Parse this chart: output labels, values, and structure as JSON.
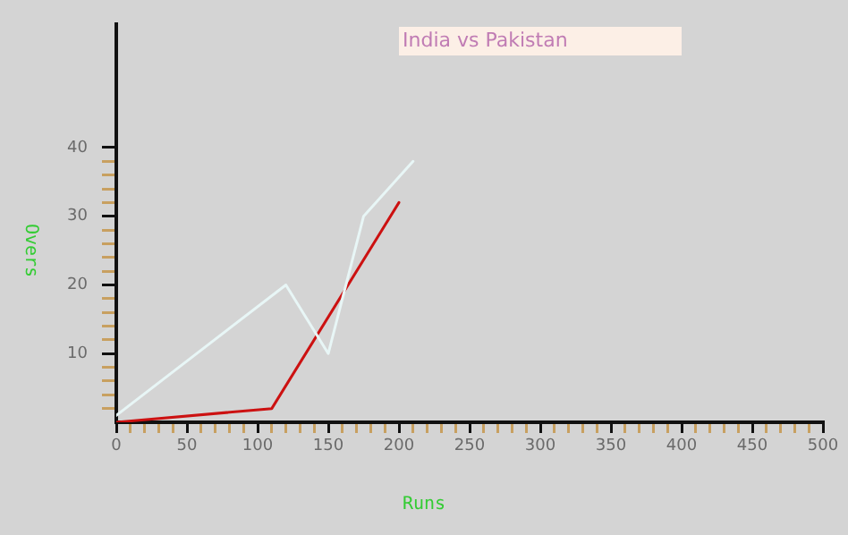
{
  "chart_data": {
    "type": "line",
    "title": "India vs Pakistan",
    "xlabel": "Runs",
    "ylabel": "Overs",
    "xlim": [
      0,
      500
    ],
    "ylim": [
      0,
      58
    ],
    "xticks": [
      0,
      {
        "value": 10,
        "label": null
      },
      {
        "value": 20,
        "label": null
      },
      {
        "value": 30,
        "label": null
      },
      {
        "value": 40,
        "label": null
      },
      50,
      {
        "value": 60,
        "label": null
      },
      {
        "value": 70,
        "label": null
      },
      {
        "value": 80,
        "label": null
      },
      {
        "value": 90,
        "label": null
      },
      100,
      {
        "value": 110,
        "label": null
      },
      {
        "value": 120,
        "label": null
      },
      {
        "value": 130,
        "label": null
      },
      {
        "value": 140,
        "label": null
      },
      150,
      {
        "value": 160,
        "label": null
      },
      {
        "value": 170,
        "label": null
      },
      {
        "value": 180,
        "label": null
      },
      {
        "value": 190,
        "label": null
      },
      200,
      {
        "value": 210,
        "label": null
      },
      {
        "value": 220,
        "label": null
      },
      {
        "value": 230,
        "label": null
      },
      {
        "value": 240,
        "label": null
      },
      250,
      {
        "value": 260,
        "label": null
      },
      {
        "value": 270,
        "label": null
      },
      {
        "value": 280,
        "label": null
      },
      {
        "value": 290,
        "label": null
      },
      300,
      {
        "value": 310,
        "label": null
      },
      {
        "value": 320,
        "label": null
      },
      {
        "value": 330,
        "label": null
      },
      {
        "value": 340,
        "label": null
      },
      350,
      {
        "value": 360,
        "label": null
      },
      {
        "value": 370,
        "label": null
      },
      {
        "value": 380,
        "label": null
      },
      {
        "value": 390,
        "label": null
      },
      400,
      {
        "value": 410,
        "label": null
      },
      {
        "value": 420,
        "label": null
      },
      {
        "value": 430,
        "label": null
      },
      {
        "value": 440,
        "label": null
      },
      450,
      {
        "value": 460,
        "label": null
      },
      {
        "value": 470,
        "label": null
      },
      {
        "value": 480,
        "label": null
      },
      {
        "value": 490,
        "label": null
      },
      500
    ],
    "yticks": [
      {
        "value": 2,
        "label": null
      },
      {
        "value": 4,
        "label": null
      },
      {
        "value": 6,
        "label": null
      },
      {
        "value": 8,
        "label": null
      },
      10,
      {
        "value": 12,
        "label": null
      },
      {
        "value": 14,
        "label": null
      },
      {
        "value": 16,
        "label": null
      },
      {
        "value": 18,
        "label": null
      },
      20,
      {
        "value": 22,
        "label": null
      },
      {
        "value": 24,
        "label": null
      },
      {
        "value": 26,
        "label": null
      },
      {
        "value": 28,
        "label": null
      },
      30,
      {
        "value": 32,
        "label": null
      },
      {
        "value": 34,
        "label": null
      },
      {
        "value": 36,
        "label": null
      },
      {
        "value": 38,
        "label": null
      },
      40
    ],
    "grid": false,
    "legend": false,
    "marker": "none",
    "line_style": "solid",
    "series": [
      {
        "color": "#e8f6f6",
        "x": [
          0,
          120,
          150,
          175,
          210
        ],
        "values": [
          1,
          20,
          10,
          30,
          38
        ]
      },
      {
        "color": "#cc1111",
        "x": [
          0,
          110,
          200
        ],
        "values": [
          0,
          2,
          32
        ]
      }
    ]
  }
}
